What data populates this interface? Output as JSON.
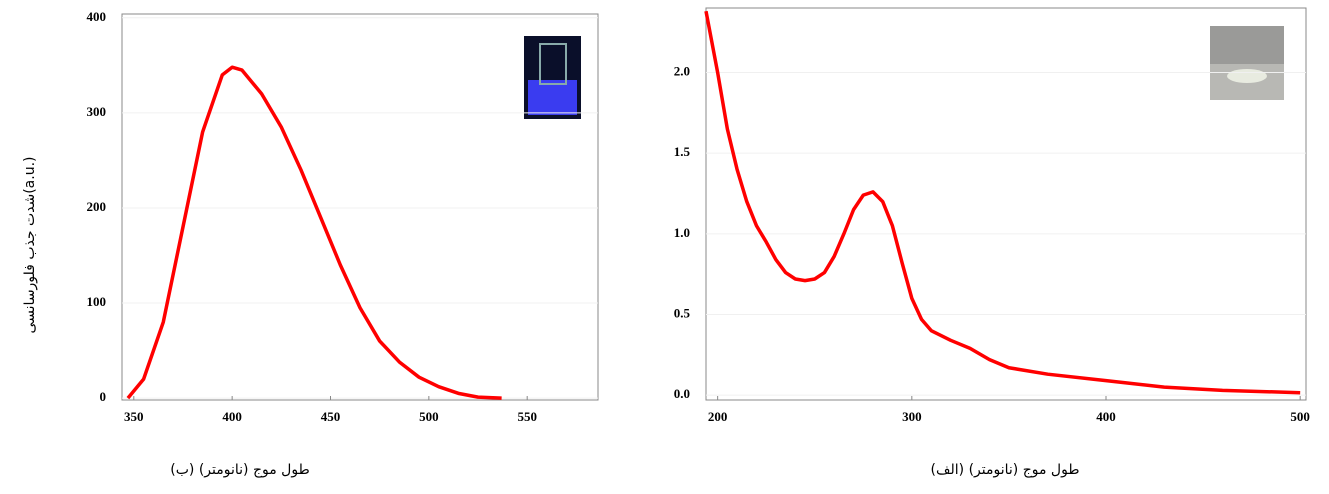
{
  "chart_data": [
    {
      "type": "line",
      "x_label": "(ب) طول موج (نانومتر)",
      "y_label": "شدت جذب فلورسانسی(a.u.)",
      "x": [
        347,
        355,
        365,
        375,
        385,
        395,
        400,
        405,
        415,
        425,
        435,
        445,
        455,
        465,
        475,
        485,
        495,
        505,
        515,
        525,
        537
      ],
      "series": [
        {
          "color": "#ff0000",
          "values": [
            0,
            20,
            80,
            180,
            280,
            340,
            348,
            345,
            320,
            285,
            240,
            190,
            140,
            95,
            60,
            38,
            22,
            12,
            5,
            1,
            0
          ]
        }
      ],
      "xlim": [
        344,
        586
      ],
      "ylim": [
        -2,
        404
      ],
      "xticks": [
        350,
        400,
        450,
        500,
        550
      ],
      "yticks": [
        0,
        100,
        200,
        300,
        400
      ],
      "grid": true
    },
    {
      "type": "line",
      "x_label": "(الف) طول موج (نانومتر)",
      "x": [
        194,
        200,
        205,
        210,
        215,
        220,
        225,
        230,
        235,
        240,
        245,
        250,
        255,
        260,
        265,
        270,
        275,
        280,
        285,
        290,
        295,
        300,
        305,
        310,
        320,
        330,
        340,
        350,
        370,
        400,
        430,
        460,
        500
      ],
      "series": [
        {
          "color": "#ff0000",
          "values": [
            2.38,
            2.0,
            1.65,
            1.4,
            1.2,
            1.05,
            0.95,
            0.84,
            0.76,
            0.72,
            0.71,
            0.72,
            0.76,
            0.86,
            1.0,
            1.15,
            1.24,
            1.26,
            1.2,
            1.05,
            0.82,
            0.6,
            0.47,
            0.4,
            0.34,
            0.29,
            0.22,
            0.17,
            0.13,
            0.09,
            0.05,
            0.03,
            0.015
          ]
        }
      ],
      "xlim": [
        194,
        503
      ],
      "ylim": [
        -0.03,
        2.4
      ],
      "xticks": [
        200,
        300,
        400,
        500
      ],
      "yticks": [
        {
          "value": 0,
          "label": "0.0"
        },
        {
          "value": 0.5,
          "label": "0.5"
        },
        {
          "value": 1,
          "label": "1.0"
        },
        {
          "value": 1.5,
          "label": "1.5"
        },
        {
          "value": 2,
          "label": "2.0"
        }
      ],
      "grid": true
    }
  ]
}
